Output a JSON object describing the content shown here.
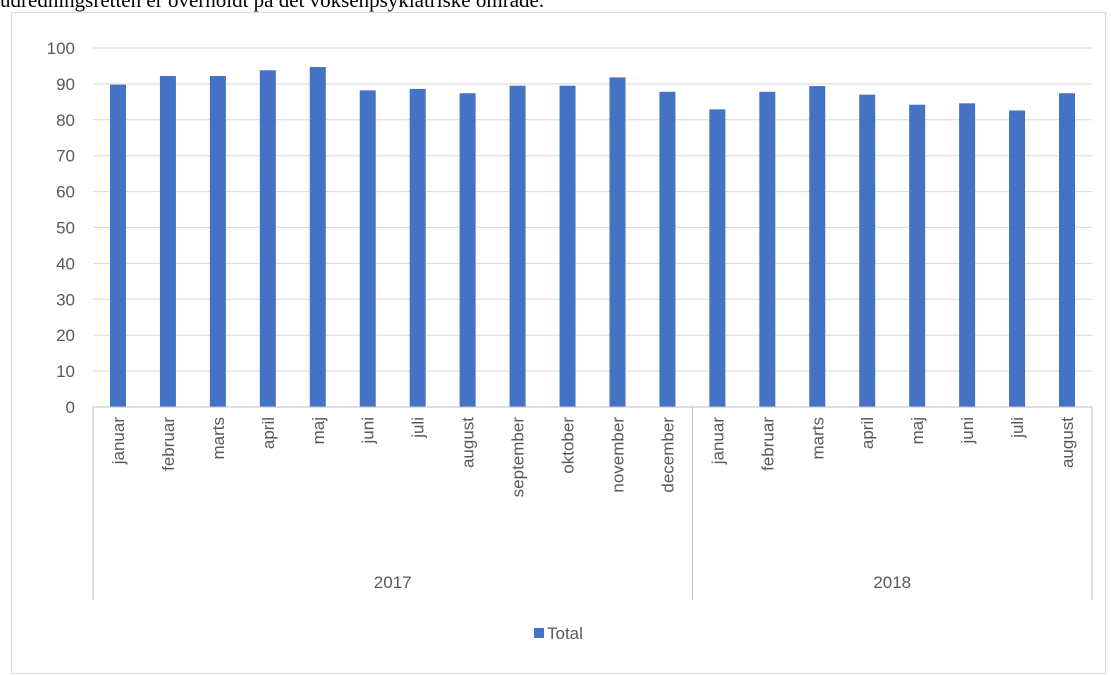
{
  "caption": "udredningsretten er overholdt på det voksenpsykiatriske område.",
  "colors": {
    "bar": "#4472c4",
    "grid": "#d9d9d9",
    "axis": "#bfbfbf",
    "text": "#595959"
  },
  "chart_data": {
    "type": "bar",
    "title": "",
    "xlabel": "",
    "ylabel": "",
    "ylim": [
      0,
      100
    ],
    "yticks": [
      0,
      10,
      20,
      30,
      40,
      50,
      60,
      70,
      80,
      90,
      100
    ],
    "grid": true,
    "legend_position": "bottom",
    "groups": [
      {
        "label": "2017",
        "categories": [
          "januar",
          "februar",
          "marts",
          "april",
          "maj",
          "juni",
          "juli",
          "august",
          "september",
          "oktober",
          "november",
          "december"
        ]
      },
      {
        "label": "2018",
        "categories": [
          "januar",
          "februar",
          "marts",
          "april",
          "maj",
          "juni",
          "juli",
          "august"
        ]
      }
    ],
    "series": [
      {
        "name": "Total",
        "values": [
          89.8,
          92.2,
          92.2,
          93.8,
          94.7,
          88.2,
          88.6,
          87.4,
          89.5,
          89.5,
          91.8,
          87.8,
          82.9,
          87.8,
          89.4,
          87.0,
          84.2,
          84.6,
          82.6,
          87.4
        ]
      }
    ]
  }
}
